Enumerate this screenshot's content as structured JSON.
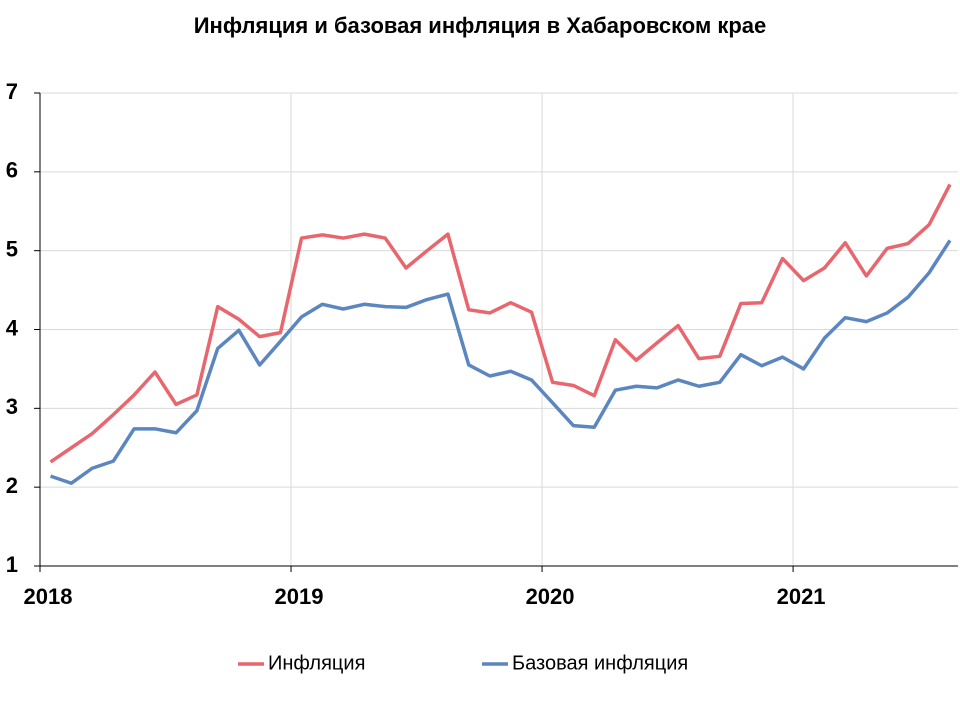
{
  "chart_data": {
    "type": "line",
    "title": "Инфляция и базовая инфляция в Хабаровском крае",
    "x": [
      2018.042,
      2018.125,
      2018.208,
      2018.292,
      2018.375,
      2018.458,
      2018.542,
      2018.625,
      2018.708,
      2018.792,
      2018.875,
      2018.958,
      2019.042,
      2019.125,
      2019.208,
      2019.292,
      2019.375,
      2019.458,
      2019.542,
      2019.625,
      2019.708,
      2019.792,
      2019.875,
      2019.958,
      2020.042,
      2020.125,
      2020.208,
      2020.292,
      2020.375,
      2020.458,
      2020.542,
      2020.625,
      2020.708,
      2020.792,
      2020.875,
      2020.958,
      2021.042,
      2021.125,
      2021.208,
      2021.292,
      2021.375,
      2021.458,
      2021.542,
      2021.625
    ],
    "series": [
      {
        "name": "Инфляция",
        "color": "#e8666e",
        "values": [
          2.32,
          2.5,
          2.68,
          2.92,
          3.17,
          3.46,
          3.05,
          3.17,
          4.29,
          4.13,
          3.91,
          3.96,
          5.16,
          5.2,
          5.16,
          5.21,
          5.16,
          4.78,
          5.0,
          5.21,
          4.25,
          4.21,
          4.34,
          4.22,
          3.33,
          3.29,
          3.16,
          3.87,
          3.61,
          3.83,
          4.05,
          3.63,
          3.66,
          4.33,
          4.34,
          4.9,
          4.62,
          4.78,
          5.1,
          4.68,
          5.03,
          5.09,
          5.33,
          5.84
        ]
      },
      {
        "name": "Базовая инфляция",
        "color": "#5b86c0",
        "values": [
          2.14,
          2.05,
          2.24,
          2.33,
          2.74,
          2.74,
          2.69,
          2.97,
          3.76,
          3.99,
          3.55,
          3.85,
          4.16,
          4.32,
          4.26,
          4.32,
          4.29,
          4.28,
          4.38,
          4.45,
          3.55,
          3.41,
          3.47,
          3.36,
          3.07,
          2.78,
          2.76,
          3.23,
          3.28,
          3.26,
          3.36,
          3.28,
          3.33,
          3.68,
          3.54,
          3.65,
          3.5,
          3.89,
          4.15,
          4.1,
          4.21,
          4.41,
          4.72,
          5.13
        ]
      }
    ],
    "xlim": [
      2018,
      2021.657
    ],
    "xticks": [
      2018,
      2019,
      2020,
      2021
    ],
    "ylim": [
      1,
      7
    ],
    "yticks": [
      1,
      2,
      3,
      4,
      5,
      6,
      7
    ],
    "grid": true,
    "legend": "bottom"
  }
}
